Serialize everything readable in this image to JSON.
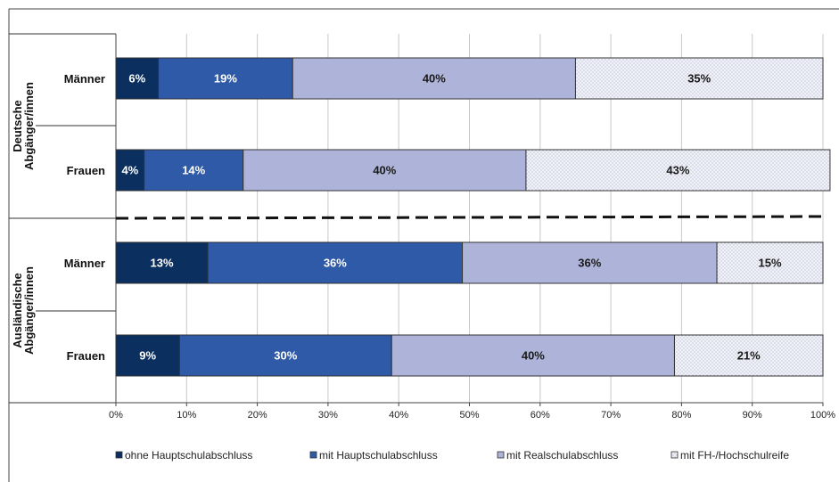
{
  "chart_data": {
    "type": "bar",
    "orientation": "horizontal",
    "stacked": true,
    "percent": true,
    "groups": [
      {
        "label": "Deutsche Abgänger/innen",
        "rows": [
          "Männer",
          "Frauen"
        ]
      },
      {
        "label": "Ausländische Abgänger/innen",
        "rows": [
          "Männer",
          "Frauen"
        ]
      }
    ],
    "categories": [
      "Männer",
      "Frauen",
      "Männer",
      "Frauen"
    ],
    "series": [
      {
        "name": "ohne Hauptschulabschluss",
        "values": [
          6,
          4,
          13,
          9
        ],
        "labels": [
          "6%",
          "4%",
          "13%",
          "9%"
        ],
        "color": "#0b2f5e",
        "text_color": "#ffffff"
      },
      {
        "name": "mit Hauptschulabschluss",
        "values": [
          19,
          14,
          36,
          30
        ],
        "labels": [
          "19%",
          "14%",
          "36%",
          "30%"
        ],
        "color": "#2f5aa8",
        "text_color": "#ffffff"
      },
      {
        "name": "mit Realschulabschluss",
        "values": [
          40,
          40,
          36,
          40
        ],
        "labels": [
          "40%",
          "40%",
          "36%",
          "40%"
        ],
        "color": "#aeb4d9",
        "text_color": "#1a1a1a"
      },
      {
        "name": "mit FH-/Hochschulreife",
        "values": [
          35,
          43,
          15,
          21
        ],
        "labels": [
          "35%",
          "43%",
          "15%",
          "21%"
        ],
        "color": "#eef0f7",
        "text_color": "#1a1a1a",
        "pattern": "dotted"
      }
    ],
    "xlim": [
      0,
      100
    ],
    "xticks": [
      "0%",
      "10%",
      "20%",
      "30%",
      "40%",
      "50%",
      "60%",
      "70%",
      "80%",
      "90%",
      "100%"
    ],
    "grid": true,
    "group_separator": "dashed",
    "legend_position": "bottom"
  }
}
